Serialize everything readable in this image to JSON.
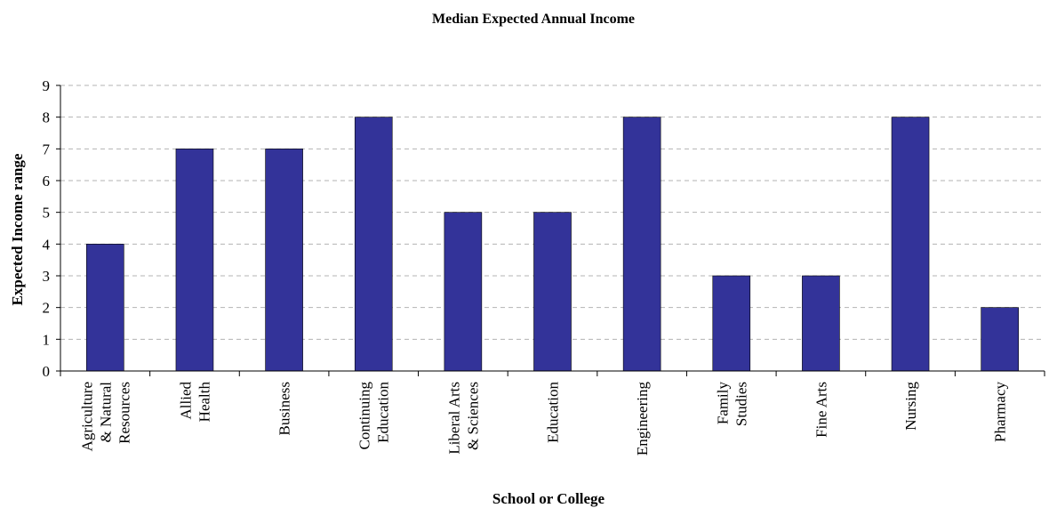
{
  "chart_data": {
    "type": "bar",
    "title": "Median Expected Annual Income",
    "xlabel": "School or College",
    "ylabel": "Expected Income range",
    "ylim": [
      0,
      9
    ],
    "yticks": [
      0,
      1,
      2,
      3,
      4,
      5,
      6,
      7,
      8,
      9
    ],
    "grid": true,
    "legend": "none",
    "bar_color": "#333399",
    "categories": [
      [
        "Agriculture",
        "& Natural",
        "Resources"
      ],
      [
        "Allied",
        "Health"
      ],
      [
        "Business"
      ],
      [
        "Continuing",
        "Education"
      ],
      [
        "Liberal Arts",
        "& Sciences"
      ],
      [
        "Education"
      ],
      [
        "Engineering"
      ],
      [
        "Family",
        "Studies"
      ],
      [
        "Fine Arts"
      ],
      [
        "Nursing"
      ],
      [
        "Pharmacy"
      ]
    ],
    "values": [
      4,
      7,
      7,
      8,
      5,
      5,
      8,
      3,
      3,
      8,
      2
    ]
  }
}
